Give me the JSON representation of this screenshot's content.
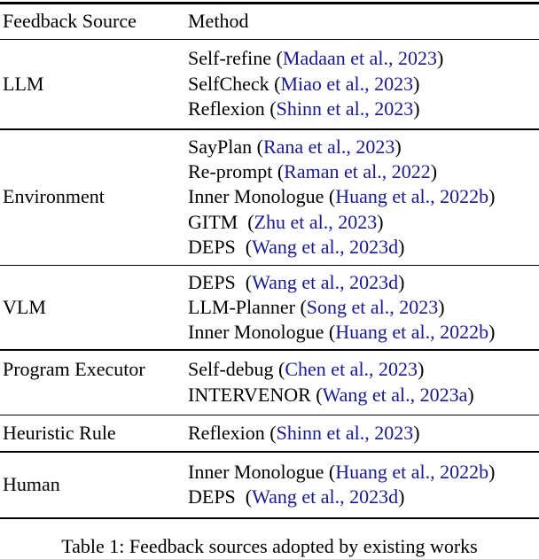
{
  "page": {
    "background": "#ffffff",
    "text_color": "#000000",
    "citation_color": "#18188f"
  },
  "header": {
    "col1": "Feedback Source",
    "col2": "Method"
  },
  "groups": [
    {
      "source": "LLM",
      "methods": [
        {
          "pre": "Self-refine (",
          "cite": "Madaan et al., 2023",
          "post": ")"
        },
        {
          "pre": "SelfCheck (",
          "cite": "Miao et al., 2023",
          "post": ")"
        },
        {
          "pre": "Reflexion (",
          "cite": "Shinn et al., 2023",
          "post": ")"
        }
      ]
    },
    {
      "source": "Environment",
      "methods": [
        {
          "pre": "SayPlan (",
          "cite": "Rana et al., 2023",
          "post": ")"
        },
        {
          "pre": "Re-prompt (",
          "cite": "Raman et al., 2022",
          "post": ")"
        },
        {
          "pre": "Inner Monologue (",
          "cite": "Huang et al., 2022b",
          "post": ")"
        },
        {
          "pre": "GITM  (",
          "cite": "Zhu et al., 2023",
          "post": ")"
        },
        {
          "pre": "DEPS  (",
          "cite": "Wang et al., 2023d",
          "post": ")"
        }
      ]
    },
    {
      "source": "VLM",
      "methods": [
        {
          "pre": "DEPS  (",
          "cite": "Wang et al., 2023d",
          "post": ")"
        },
        {
          "pre": "LLM-Planner (",
          "cite": "Song et al., 2023",
          "post": ")"
        },
        {
          "pre": "Inner Monologue (",
          "cite": "Huang et al., 2022b",
          "post": ")"
        }
      ]
    },
    {
      "source": "Program Executor",
      "methods": [
        {
          "pre": "Self-debug (",
          "cite": "Chen et al., 2023",
          "post": ")"
        },
        {
          "pre": "INTERVENOR (",
          "cite": "Wang et al., 2023a",
          "post": ")"
        }
      ]
    },
    {
      "source": "Heuristic Rule",
      "methods": [
        {
          "pre": "Reflexion (",
          "cite": "Shinn et al., 2023",
          "post": ")"
        }
      ]
    },
    {
      "source": "Human",
      "methods": [
        {
          "pre": "Inner Monologue (",
          "cite": "Huang et al., 2022b",
          "post": ")"
        },
        {
          "pre": "DEPS  (",
          "cite": "Wang et al., 2023d",
          "post": ")"
        }
      ]
    }
  ],
  "caption": "Table 1: Feedback sources adopted by existing works"
}
